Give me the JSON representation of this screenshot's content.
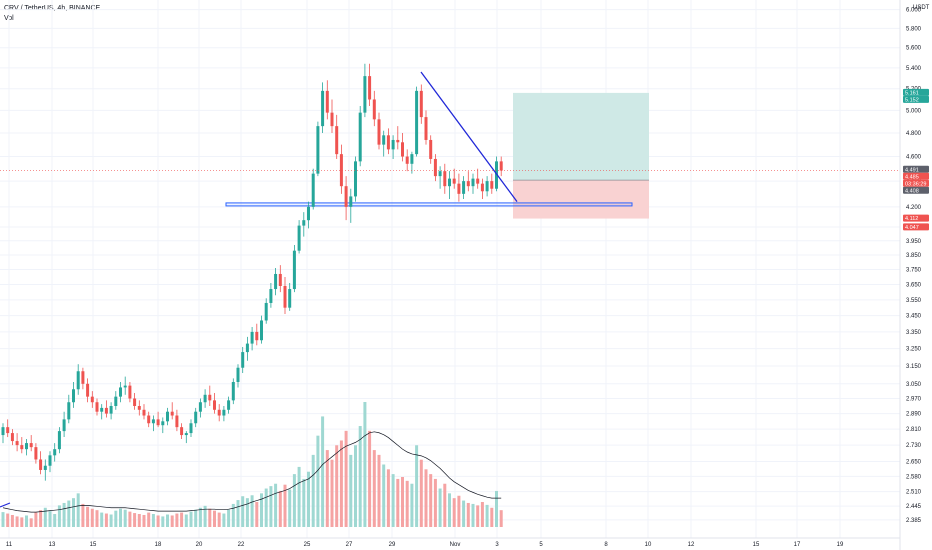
{
  "legend": {
    "symbol_line": "CRV / TetherUS, 4h, BINANCE",
    "indicator_line": "Vol"
  },
  "axis": {
    "currency_label": "USDT"
  },
  "colors": {
    "up": "#26a69a",
    "down": "#ef5350",
    "volume_up": "#9fd8d2",
    "volume_down": "#f5a3a3",
    "trendline": "#2128d8",
    "zone_box": "#2962ff",
    "target_fill": "#cfe9e6",
    "stop_fill": "#f9d2d2",
    "badge_green": "#26a69a",
    "badge_red": "#ef5350",
    "badge_gray": "#5d606b",
    "grid": "#f0f3fa",
    "volume_ma": "#131722"
  },
  "chart_data": {
    "type": "candlestick",
    "title": "CRV / TetherUS, 4h, BINANCE",
    "y_scale": "log",
    "ylim": [
      2.35,
      6.05
    ],
    "y_ticks": [
      "2.385",
      "2.445",
      "2.510",
      "2.580",
      "2.650",
      "2.730",
      "2.810",
      "2.890",
      "2.970",
      "3.050",
      "3.150",
      "3.250",
      "3.350",
      "3.450",
      "3.550",
      "3.650",
      "3.750",
      "3.850",
      "3.950",
      "4.050",
      "4.200",
      "4.400",
      "4.600",
      "4.800",
      "5.000",
      "5.200",
      "5.400",
      "5.600",
      "5.800",
      "6.000"
    ],
    "x_ticks": [
      "11",
      "13",
      "15",
      "18",
      "20",
      "22",
      "25",
      "27",
      "29",
      "Nov",
      "3",
      "5",
      "8",
      "10",
      "12",
      "15",
      "17",
      "19"
    ],
    "price_badges": [
      {
        "label": "5.161",
        "value": 5.161,
        "color": "badge_green"
      },
      {
        "label": "5.152",
        "value": 5.152,
        "color": "badge_green"
      },
      {
        "label": "4.491",
        "value": 4.491,
        "color": "badge_gray"
      },
      {
        "label": "4.485",
        "value": 4.485,
        "color": "badge_red"
      },
      {
        "label": "03:36:29",
        "value": 4.455,
        "color": "badge_red"
      },
      {
        "label": "4.408",
        "value": 4.408,
        "color": "badge_gray"
      },
      {
        "label": "4.112",
        "value": 4.112,
        "color": "badge_red"
      },
      {
        "label": "4.047",
        "value": 4.047,
        "color": "badge_red"
      }
    ],
    "last_price": 4.485,
    "candles": [
      [
        2.78,
        2.84,
        2.74,
        2.82,
        31
      ],
      [
        2.82,
        2.86,
        2.77,
        2.79,
        28
      ],
      [
        2.79,
        2.81,
        2.73,
        2.75,
        25
      ],
      [
        2.75,
        2.79,
        2.7,
        2.73,
        22
      ],
      [
        2.73,
        2.77,
        2.69,
        2.71,
        20
      ],
      [
        2.71,
        2.76,
        2.68,
        2.74,
        24
      ],
      [
        2.74,
        2.78,
        2.7,
        2.72,
        18
      ],
      [
        2.72,
        2.74,
        2.64,
        2.66,
        30
      ],
      [
        2.66,
        2.7,
        2.59,
        2.61,
        35
      ],
      [
        2.61,
        2.66,
        2.56,
        2.63,
        40
      ],
      [
        2.63,
        2.7,
        2.6,
        2.68,
        33
      ],
      [
        2.68,
        2.74,
        2.65,
        2.71,
        27
      ],
      [
        2.71,
        2.82,
        2.69,
        2.8,
        45
      ],
      [
        2.8,
        2.9,
        2.77,
        2.86,
        50
      ],
      [
        2.86,
        2.99,
        2.84,
        2.95,
        55
      ],
      [
        2.95,
        3.06,
        2.92,
        3.02,
        60
      ],
      [
        3.02,
        3.16,
        2.99,
        3.12,
        70
      ],
      [
        3.12,
        3.14,
        3.02,
        3.05,
        48
      ],
      [
        3.05,
        3.08,
        2.95,
        2.98,
        42
      ],
      [
        2.98,
        3.01,
        2.92,
        2.95,
        38
      ],
      [
        2.95,
        2.97,
        2.88,
        2.9,
        35
      ],
      [
        2.9,
        2.94,
        2.86,
        2.92,
        30
      ],
      [
        2.92,
        2.96,
        2.87,
        2.89,
        28
      ],
      [
        2.89,
        2.95,
        2.86,
        2.93,
        26
      ],
      [
        2.93,
        3.01,
        2.91,
        2.98,
        34
      ],
      [
        2.98,
        3.06,
        2.95,
        3.03,
        38
      ],
      [
        3.03,
        3.09,
        2.99,
        3.04,
        36
      ],
      [
        3.04,
        3.06,
        2.95,
        2.97,
        32
      ],
      [
        2.97,
        3.0,
        2.91,
        2.93,
        29
      ],
      [
        2.93,
        2.96,
        2.88,
        2.91,
        27
      ],
      [
        2.91,
        2.94,
        2.86,
        2.88,
        25
      ],
      [
        2.88,
        2.9,
        2.82,
        2.84,
        30
      ],
      [
        2.84,
        2.88,
        2.8,
        2.86,
        27
      ],
      [
        2.86,
        2.9,
        2.82,
        2.83,
        24
      ],
      [
        2.83,
        2.87,
        2.79,
        2.85,
        22
      ],
      [
        2.85,
        2.92,
        2.83,
        2.9,
        26
      ],
      [
        2.9,
        2.95,
        2.86,
        2.88,
        24
      ],
      [
        2.88,
        2.91,
        2.8,
        2.82,
        28
      ],
      [
        2.82,
        2.84,
        2.76,
        2.78,
        30
      ],
      [
        2.78,
        2.8,
        2.74,
        2.79,
        26
      ],
      [
        2.79,
        2.86,
        2.77,
        2.84,
        32
      ],
      [
        2.84,
        2.92,
        2.82,
        2.9,
        36
      ],
      [
        2.9,
        2.97,
        2.87,
        2.95,
        40
      ],
      [
        2.95,
        3.02,
        2.92,
        2.99,
        44
      ],
      [
        2.99,
        3.04,
        2.93,
        2.96,
        38
      ],
      [
        2.96,
        3.0,
        2.89,
        2.91,
        34
      ],
      [
        2.91,
        2.94,
        2.85,
        2.88,
        30
      ],
      [
        2.88,
        2.93,
        2.85,
        2.91,
        28
      ],
      [
        2.91,
        2.98,
        2.89,
        2.96,
        36
      ],
      [
        2.96,
        3.08,
        2.94,
        3.06,
        48
      ],
      [
        3.06,
        3.16,
        3.03,
        3.14,
        56
      ],
      [
        3.14,
        3.26,
        3.11,
        3.23,
        64
      ],
      [
        3.23,
        3.32,
        3.18,
        3.28,
        60
      ],
      [
        3.28,
        3.38,
        3.24,
        3.35,
        66
      ],
      [
        3.35,
        3.4,
        3.27,
        3.3,
        52
      ],
      [
        3.3,
        3.45,
        3.28,
        3.42,
        70
      ],
      [
        3.42,
        3.56,
        3.4,
        3.53,
        80
      ],
      [
        3.53,
        3.66,
        3.5,
        3.62,
        85
      ],
      [
        3.62,
        3.76,
        3.58,
        3.72,
        90
      ],
      [
        3.72,
        3.78,
        3.6,
        3.64,
        75
      ],
      [
        3.64,
        3.7,
        3.46,
        3.5,
        88
      ],
      [
        3.5,
        3.66,
        3.48,
        3.62,
        78
      ],
      [
        3.62,
        3.92,
        3.6,
        3.88,
        110
      ],
      [
        3.88,
        4.1,
        3.86,
        4.06,
        125
      ],
      [
        4.06,
        4.16,
        3.98,
        4.1,
        100
      ],
      [
        4.1,
        4.24,
        4.04,
        4.2,
        115
      ],
      [
        4.2,
        4.5,
        4.18,
        4.46,
        150
      ],
      [
        4.46,
        4.9,
        4.44,
        4.86,
        190
      ],
      [
        4.86,
        5.26,
        4.8,
        5.18,
        230
      ],
      [
        5.18,
        5.28,
        4.92,
        4.98,
        160
      ],
      [
        4.98,
        5.1,
        4.8,
        4.86,
        140
      ],
      [
        4.86,
        4.96,
        4.58,
        4.62,
        170
      ],
      [
        4.62,
        4.7,
        4.3,
        4.36,
        180
      ],
      [
        4.36,
        4.44,
        4.1,
        4.2,
        200
      ],
      [
        4.2,
        4.34,
        4.08,
        4.28,
        150
      ],
      [
        4.28,
        4.6,
        4.24,
        4.56,
        170
      ],
      [
        4.56,
        5.04,
        4.52,
        4.98,
        210
      ],
      [
        4.98,
        5.44,
        4.94,
        5.32,
        260
      ],
      [
        5.32,
        5.44,
        5.04,
        5.1,
        200
      ],
      [
        5.1,
        5.18,
        4.86,
        4.92,
        160
      ],
      [
        4.92,
        4.98,
        4.66,
        4.7,
        150
      ],
      [
        4.7,
        4.82,
        4.6,
        4.78,
        130
      ],
      [
        4.78,
        4.84,
        4.62,
        4.66,
        120
      ],
      [
        4.66,
        4.78,
        4.58,
        4.74,
        110
      ],
      [
        4.74,
        4.86,
        4.66,
        4.72,
        100
      ],
      [
        4.72,
        4.8,
        4.56,
        4.6,
        104
      ],
      [
        4.6,
        4.66,
        4.48,
        4.54,
        96
      ],
      [
        4.54,
        4.64,
        4.46,
        4.62,
        90
      ],
      [
        4.62,
        5.22,
        4.6,
        5.18,
        170
      ],
      [
        5.18,
        5.24,
        4.88,
        4.94,
        140
      ],
      [
        4.94,
        5.0,
        4.7,
        4.74,
        120
      ],
      [
        4.74,
        4.78,
        4.54,
        4.58,
        110
      ],
      [
        4.58,
        4.62,
        4.4,
        4.44,
        100
      ],
      [
        4.44,
        4.52,
        4.34,
        4.48,
        80
      ],
      [
        4.48,
        4.54,
        4.3,
        4.36,
        90
      ],
      [
        4.36,
        4.48,
        4.26,
        4.42,
        70
      ],
      [
        4.42,
        4.5,
        4.34,
        4.38,
        60
      ],
      [
        4.38,
        4.46,
        4.24,
        4.3,
        65
      ],
      [
        4.3,
        4.44,
        4.26,
        4.4,
        55
      ],
      [
        4.4,
        4.48,
        4.32,
        4.36,
        50
      ],
      [
        4.36,
        4.46,
        4.3,
        4.42,
        48
      ],
      [
        4.42,
        4.5,
        4.34,
        4.38,
        45
      ],
      [
        4.38,
        4.42,
        4.26,
        4.32,
        52
      ],
      [
        4.32,
        4.44,
        4.28,
        4.4,
        46
      ],
      [
        4.4,
        4.46,
        4.3,
        4.34,
        40
      ],
      [
        4.34,
        4.6,
        4.32,
        4.56,
        75
      ],
      [
        4.56,
        4.6,
        4.44,
        4.485,
        35
      ]
    ],
    "volume_ma": [
      40,
      38,
      36,
      34,
      33,
      32,
      31,
      31,
      32,
      33,
      34,
      35,
      36,
      38,
      40,
      42,
      44,
      45,
      45,
      44,
      43,
      42,
      41,
      40,
      40,
      40,
      40,
      39,
      38,
      37,
      36,
      35,
      34,
      33,
      33,
      33,
      33,
      33,
      33,
      33,
      34,
      35,
      36,
      37,
      37,
      37,
      36,
      36,
      37,
      39,
      42,
      45,
      48,
      52,
      55,
      58,
      62,
      66,
      70,
      73,
      76,
      80,
      86,
      92,
      96,
      100,
      108,
      118,
      130,
      138,
      146,
      154,
      162,
      168,
      172,
      176,
      182,
      190,
      196,
      198,
      196,
      192,
      186,
      178,
      170,
      162,
      156,
      152,
      150,
      148,
      144,
      138,
      130,
      122,
      112,
      102,
      94,
      88,
      82,
      76,
      72,
      68,
      65,
      62,
      60,
      60,
      60
    ]
  },
  "drawings": {
    "support_zone": {
      "price_low": 4.21,
      "price_high": 4.23
    },
    "trendline": {
      "price_start": 5.36,
      "price_end": 4.24
    },
    "position": {
      "target": 5.161,
      "entry": 4.408,
      "stop": 4.112
    }
  }
}
